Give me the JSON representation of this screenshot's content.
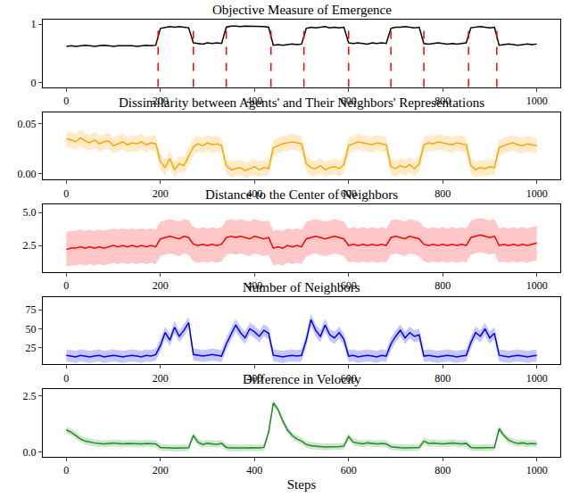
{
  "chart_data": [
    {
      "type": "line",
      "title": "Objective Measure of Emergence",
      "color": "#000000",
      "grid": false,
      "xlim": [
        -50,
        1050
      ],
      "xticks": [
        0,
        200,
        400,
        600,
        800,
        1000
      ],
      "ylim": [
        -0.08,
        1.08
      ],
      "yticks": [
        0,
        1
      ],
      "vlines": [
        195,
        270,
        340,
        435,
        505,
        600,
        690,
        760,
        855,
        915
      ],
      "vline_color": "#ff0000",
      "line_style": "dashed",
      "x": [
        0,
        10,
        20,
        30,
        40,
        50,
        60,
        70,
        80,
        90,
        100,
        110,
        120,
        130,
        140,
        150,
        160,
        170,
        180,
        190,
        200,
        210,
        220,
        230,
        240,
        250,
        260,
        270,
        280,
        290,
        300,
        310,
        320,
        330,
        340,
        350,
        360,
        370,
        380,
        390,
        400,
        410,
        420,
        430,
        440,
        450,
        460,
        470,
        480,
        490,
        500,
        510,
        520,
        530,
        540,
        550,
        560,
        570,
        580,
        590,
        600,
        610,
        620,
        630,
        640,
        650,
        660,
        670,
        680,
        690,
        700,
        710,
        720,
        730,
        740,
        750,
        760,
        770,
        780,
        790,
        800,
        810,
        820,
        830,
        840,
        850,
        860,
        870,
        880,
        890,
        900,
        910,
        920,
        930,
        940,
        950,
        960,
        970,
        980,
        990,
        1000
      ],
      "values": [
        0.62,
        0.63,
        0.62,
        0.63,
        0.64,
        0.63,
        0.62,
        0.63,
        0.64,
        0.63,
        0.62,
        0.63,
        0.63,
        0.64,
        0.63,
        0.62,
        0.63,
        0.64,
        0.63,
        0.64,
        0.93,
        0.95,
        0.96,
        0.95,
        0.96,
        0.95,
        0.94,
        0.68,
        0.67,
        0.66,
        0.68,
        0.67,
        0.68,
        0.67,
        0.95,
        0.97,
        0.97,
        0.96,
        0.97,
        0.97,
        0.96,
        0.97,
        0.96,
        0.95,
        0.64,
        0.65,
        0.64,
        0.65,
        0.66,
        0.65,
        0.66,
        0.93,
        0.95,
        0.94,
        0.95,
        0.96,
        0.94,
        0.95,
        0.94,
        0.95,
        0.68,
        0.67,
        0.68,
        0.67,
        0.66,
        0.68,
        0.67,
        0.68,
        0.67,
        0.93,
        0.95,
        0.95,
        0.96,
        0.95,
        0.94,
        0.95,
        0.67,
        0.66,
        0.67,
        0.68,
        0.67,
        0.66,
        0.67,
        0.66,
        0.67,
        0.68,
        0.94,
        0.95,
        0.96,
        0.95,
        0.94,
        0.95,
        0.64,
        0.65,
        0.66,
        0.65,
        0.64,
        0.65,
        0.66,
        0.65,
        0.66
      ]
    },
    {
      "type": "line",
      "title": "Dissimilarity between Agents' and Their Neighbors' Representations",
      "color": "#ffa500",
      "grid": false,
      "xlim": [
        -50,
        1050
      ],
      "xticks": [
        0,
        200,
        400,
        600,
        800,
        1000
      ],
      "ylim": [
        -0.006,
        0.062
      ],
      "yticks": [
        {
          "value": 0,
          "label": "0.00"
        },
        {
          "value": 0.05,
          "label": "0.05"
        }
      ],
      "spread": 0.008,
      "x": [
        0,
        10,
        20,
        30,
        40,
        50,
        60,
        70,
        80,
        90,
        100,
        110,
        120,
        130,
        140,
        150,
        160,
        170,
        180,
        190,
        200,
        210,
        220,
        230,
        240,
        250,
        260,
        270,
        280,
        290,
        300,
        310,
        320,
        330,
        340,
        350,
        360,
        370,
        380,
        390,
        400,
        410,
        420,
        430,
        440,
        450,
        460,
        470,
        480,
        490,
        500,
        510,
        520,
        530,
        540,
        550,
        560,
        570,
        580,
        590,
        600,
        610,
        620,
        630,
        640,
        650,
        660,
        670,
        680,
        690,
        700,
        710,
        720,
        730,
        740,
        750,
        760,
        770,
        780,
        790,
        800,
        810,
        820,
        830,
        840,
        850,
        860,
        870,
        880,
        890,
        900,
        910,
        920,
        930,
        940,
        950,
        960,
        970,
        980,
        990,
        1000
      ],
      "values": [
        0.035,
        0.034,
        0.032,
        0.036,
        0.033,
        0.031,
        0.034,
        0.03,
        0.032,
        0.033,
        0.028,
        0.03,
        0.032,
        0.029,
        0.031,
        0.03,
        0.032,
        0.029,
        0.031,
        0.03,
        0.012,
        0.006,
        0.015,
        0.004,
        0.01,
        0.008,
        0.018,
        0.027,
        0.03,
        0.028,
        0.031,
        0.029,
        0.03,
        0.028,
        0.008,
        0.004,
        0.005,
        0.006,
        0.003,
        0.005,
        0.007,
        0.004,
        0.006,
        0.005,
        0.026,
        0.028,
        0.03,
        0.031,
        0.032,
        0.031,
        0.03,
        0.01,
        0.006,
        0.005,
        0.008,
        0.004,
        0.006,
        0.007,
        0.005,
        0.009,
        0.028,
        0.03,
        0.032,
        0.031,
        0.03,
        0.029,
        0.031,
        0.03,
        0.029,
        0.007,
        0.005,
        0.008,
        0.006,
        0.009,
        0.005,
        0.01,
        0.029,
        0.031,
        0.03,
        0.032,
        0.031,
        0.03,
        0.029,
        0.031,
        0.03,
        0.029,
        0.008,
        0.004,
        0.006,
        0.005,
        0.007,
        0.006,
        0.026,
        0.028,
        0.03,
        0.031,
        0.029,
        0.028,
        0.03,
        0.029,
        0.028
      ]
    },
    {
      "type": "line",
      "title": "Distance to the Center of Neighbors",
      "color": "#ff0000",
      "grid": false,
      "xlim": [
        -50,
        1050
      ],
      "xticks": [
        0,
        200,
        400,
        600,
        800,
        1000
      ],
      "ylim": [
        0.5,
        5.6
      ],
      "yticks": [
        2.5,
        {
          "value": 5,
          "label": "5.0"
        }
      ],
      "spread": 1.3,
      "x": [
        0,
        10,
        20,
        30,
        40,
        50,
        60,
        70,
        80,
        90,
        100,
        110,
        120,
        130,
        140,
        150,
        160,
        170,
        180,
        190,
        200,
        210,
        220,
        230,
        240,
        250,
        260,
        270,
        280,
        290,
        300,
        310,
        320,
        330,
        340,
        350,
        360,
        370,
        380,
        390,
        400,
        410,
        420,
        430,
        440,
        450,
        460,
        470,
        480,
        490,
        500,
        510,
        520,
        530,
        540,
        550,
        560,
        570,
        580,
        590,
        600,
        610,
        620,
        630,
        640,
        650,
        660,
        670,
        680,
        690,
        700,
        710,
        720,
        730,
        740,
        750,
        760,
        770,
        780,
        790,
        800,
        810,
        820,
        830,
        840,
        850,
        860,
        870,
        880,
        890,
        900,
        910,
        920,
        930,
        940,
        950,
        960,
        970,
        980,
        990,
        1000
      ],
      "values": [
        2.2,
        2.3,
        2.3,
        2.4,
        2.3,
        2.4,
        2.3,
        2.4,
        2.3,
        2.4,
        2.5,
        2.4,
        2.5,
        2.4,
        2.5,
        2.4,
        2.5,
        2.4,
        2.5,
        2.4,
        3.0,
        3.1,
        3.2,
        3.1,
        3.0,
        3.2,
        3.1,
        2.6,
        2.5,
        2.6,
        2.5,
        2.6,
        2.5,
        2.6,
        3.1,
        3.2,
        3.1,
        3.2,
        3.1,
        3.0,
        3.2,
        3.1,
        3.0,
        3.1,
        2.3,
        2.4,
        2.3,
        2.5,
        2.4,
        2.5,
        2.4,
        3.0,
        3.1,
        3.2,
        3.1,
        3.0,
        3.1,
        3.2,
        3.1,
        3.0,
        2.5,
        2.6,
        2.5,
        2.6,
        2.5,
        2.6,
        2.5,
        2.6,
        2.5,
        3.1,
        3.2,
        3.1,
        3.0,
        3.2,
        3.1,
        3.0,
        2.6,
        2.5,
        2.6,
        2.5,
        2.6,
        2.5,
        2.6,
        2.5,
        2.6,
        2.5,
        3.1,
        3.2,
        3.3,
        3.2,
        3.1,
        3.2,
        2.5,
        2.6,
        2.5,
        2.6,
        2.5,
        2.6,
        2.5,
        2.6,
        2.7
      ]
    },
    {
      "type": "line",
      "title": "Number of Neighbors",
      "color": "#0000ff",
      "grid": false,
      "xlim": [
        -50,
        1050
      ],
      "xticks": [
        0,
        200,
        400,
        600,
        800,
        1000
      ],
      "ylim": [
        3,
        92
      ],
      "yticks": [
        25,
        50,
        75
      ],
      "spread": 8,
      "x": [
        0,
        10,
        20,
        30,
        40,
        50,
        60,
        70,
        80,
        90,
        100,
        110,
        120,
        130,
        140,
        150,
        160,
        170,
        180,
        190,
        200,
        210,
        220,
        230,
        240,
        250,
        260,
        270,
        280,
        290,
        300,
        310,
        320,
        330,
        340,
        350,
        360,
        370,
        380,
        390,
        400,
        410,
        420,
        430,
        440,
        450,
        460,
        470,
        480,
        490,
        500,
        510,
        520,
        530,
        540,
        550,
        560,
        570,
        580,
        590,
        600,
        610,
        620,
        630,
        640,
        650,
        660,
        670,
        680,
        690,
        700,
        710,
        720,
        730,
        740,
        750,
        760,
        770,
        780,
        790,
        800,
        810,
        820,
        830,
        840,
        850,
        860,
        870,
        880,
        890,
        900,
        910,
        920,
        930,
        940,
        950,
        960,
        970,
        980,
        990,
        1000
      ],
      "values": [
        15,
        14,
        13,
        15,
        14,
        13,
        14,
        15,
        13,
        14,
        15,
        14,
        13,
        14,
        15,
        14,
        13,
        15,
        14,
        16,
        28,
        45,
        35,
        52,
        40,
        48,
        58,
        16,
        15,
        14,
        15,
        16,
        15,
        14,
        30,
        42,
        55,
        45,
        38,
        50,
        46,
        40,
        48,
        44,
        15,
        14,
        13,
        14,
        15,
        14,
        15,
        35,
        62,
        48,
        40,
        55,
        42,
        38,
        45,
        36,
        14,
        15,
        13,
        14,
        15,
        14,
        13,
        15,
        14,
        30,
        40,
        48,
        38,
        45,
        40,
        42,
        14,
        15,
        14,
        13,
        14,
        15,
        14,
        13,
        14,
        15,
        32,
        45,
        40,
        50,
        38,
        44,
        15,
        14,
        13,
        14,
        15,
        14,
        13,
        14,
        15
      ]
    },
    {
      "type": "line",
      "title": "Difference in Velocity",
      "color": "#228b22",
      "grid": false,
      "xlim": [
        -50,
        1050
      ],
      "xticks": [
        0,
        200,
        400,
        600,
        800,
        1000
      ],
      "ylim": [
        -0.2,
        2.8
      ],
      "yticks": [
        {
          "value": 0,
          "label": "0.0"
        },
        2.5
      ],
      "spread": 0.15,
      "x_label": "Steps",
      "x": [
        0,
        10,
        20,
        30,
        40,
        50,
        60,
        70,
        80,
        90,
        100,
        110,
        120,
        130,
        140,
        150,
        160,
        170,
        180,
        190,
        200,
        210,
        220,
        230,
        240,
        250,
        260,
        270,
        280,
        290,
        300,
        310,
        320,
        330,
        340,
        350,
        360,
        370,
        380,
        390,
        400,
        410,
        420,
        430,
        440,
        450,
        460,
        470,
        480,
        490,
        500,
        510,
        520,
        530,
        540,
        550,
        560,
        570,
        580,
        590,
        600,
        610,
        620,
        630,
        640,
        650,
        660,
        670,
        680,
        690,
        700,
        710,
        720,
        730,
        740,
        750,
        760,
        770,
        780,
        790,
        800,
        810,
        820,
        830,
        840,
        850,
        860,
        870,
        880,
        890,
        900,
        910,
        920,
        930,
        940,
        950,
        960,
        970,
        980,
        990,
        1000
      ],
      "values": [
        1.0,
        0.9,
        0.75,
        0.6,
        0.5,
        0.45,
        0.42,
        0.4,
        0.38,
        0.4,
        0.42,
        0.4,
        0.38,
        0.4,
        0.39,
        0.4,
        0.38,
        0.4,
        0.39,
        0.38,
        0.22,
        0.2,
        0.2,
        0.19,
        0.2,
        0.2,
        0.21,
        0.75,
        0.45,
        0.35,
        0.4,
        0.38,
        0.36,
        0.4,
        0.22,
        0.2,
        0.19,
        0.2,
        0.2,
        0.21,
        0.2,
        0.2,
        0.22,
        0.9,
        2.2,
        1.9,
        1.4,
        1.0,
        0.75,
        0.6,
        0.5,
        0.35,
        0.3,
        0.28,
        0.25,
        0.24,
        0.25,
        0.24,
        0.26,
        0.28,
        0.7,
        0.45,
        0.4,
        0.38,
        0.42,
        0.4,
        0.38,
        0.4,
        0.38,
        0.25,
        0.22,
        0.21,
        0.2,
        0.21,
        0.2,
        0.22,
        0.5,
        0.4,
        0.42,
        0.4,
        0.38,
        0.4,
        0.42,
        0.4,
        0.38,
        0.4,
        0.22,
        0.2,
        0.2,
        0.21,
        0.2,
        0.22,
        1.05,
        0.75,
        0.55,
        0.45,
        0.4,
        0.42,
        0.38,
        0.4,
        0.38
      ]
    }
  ]
}
